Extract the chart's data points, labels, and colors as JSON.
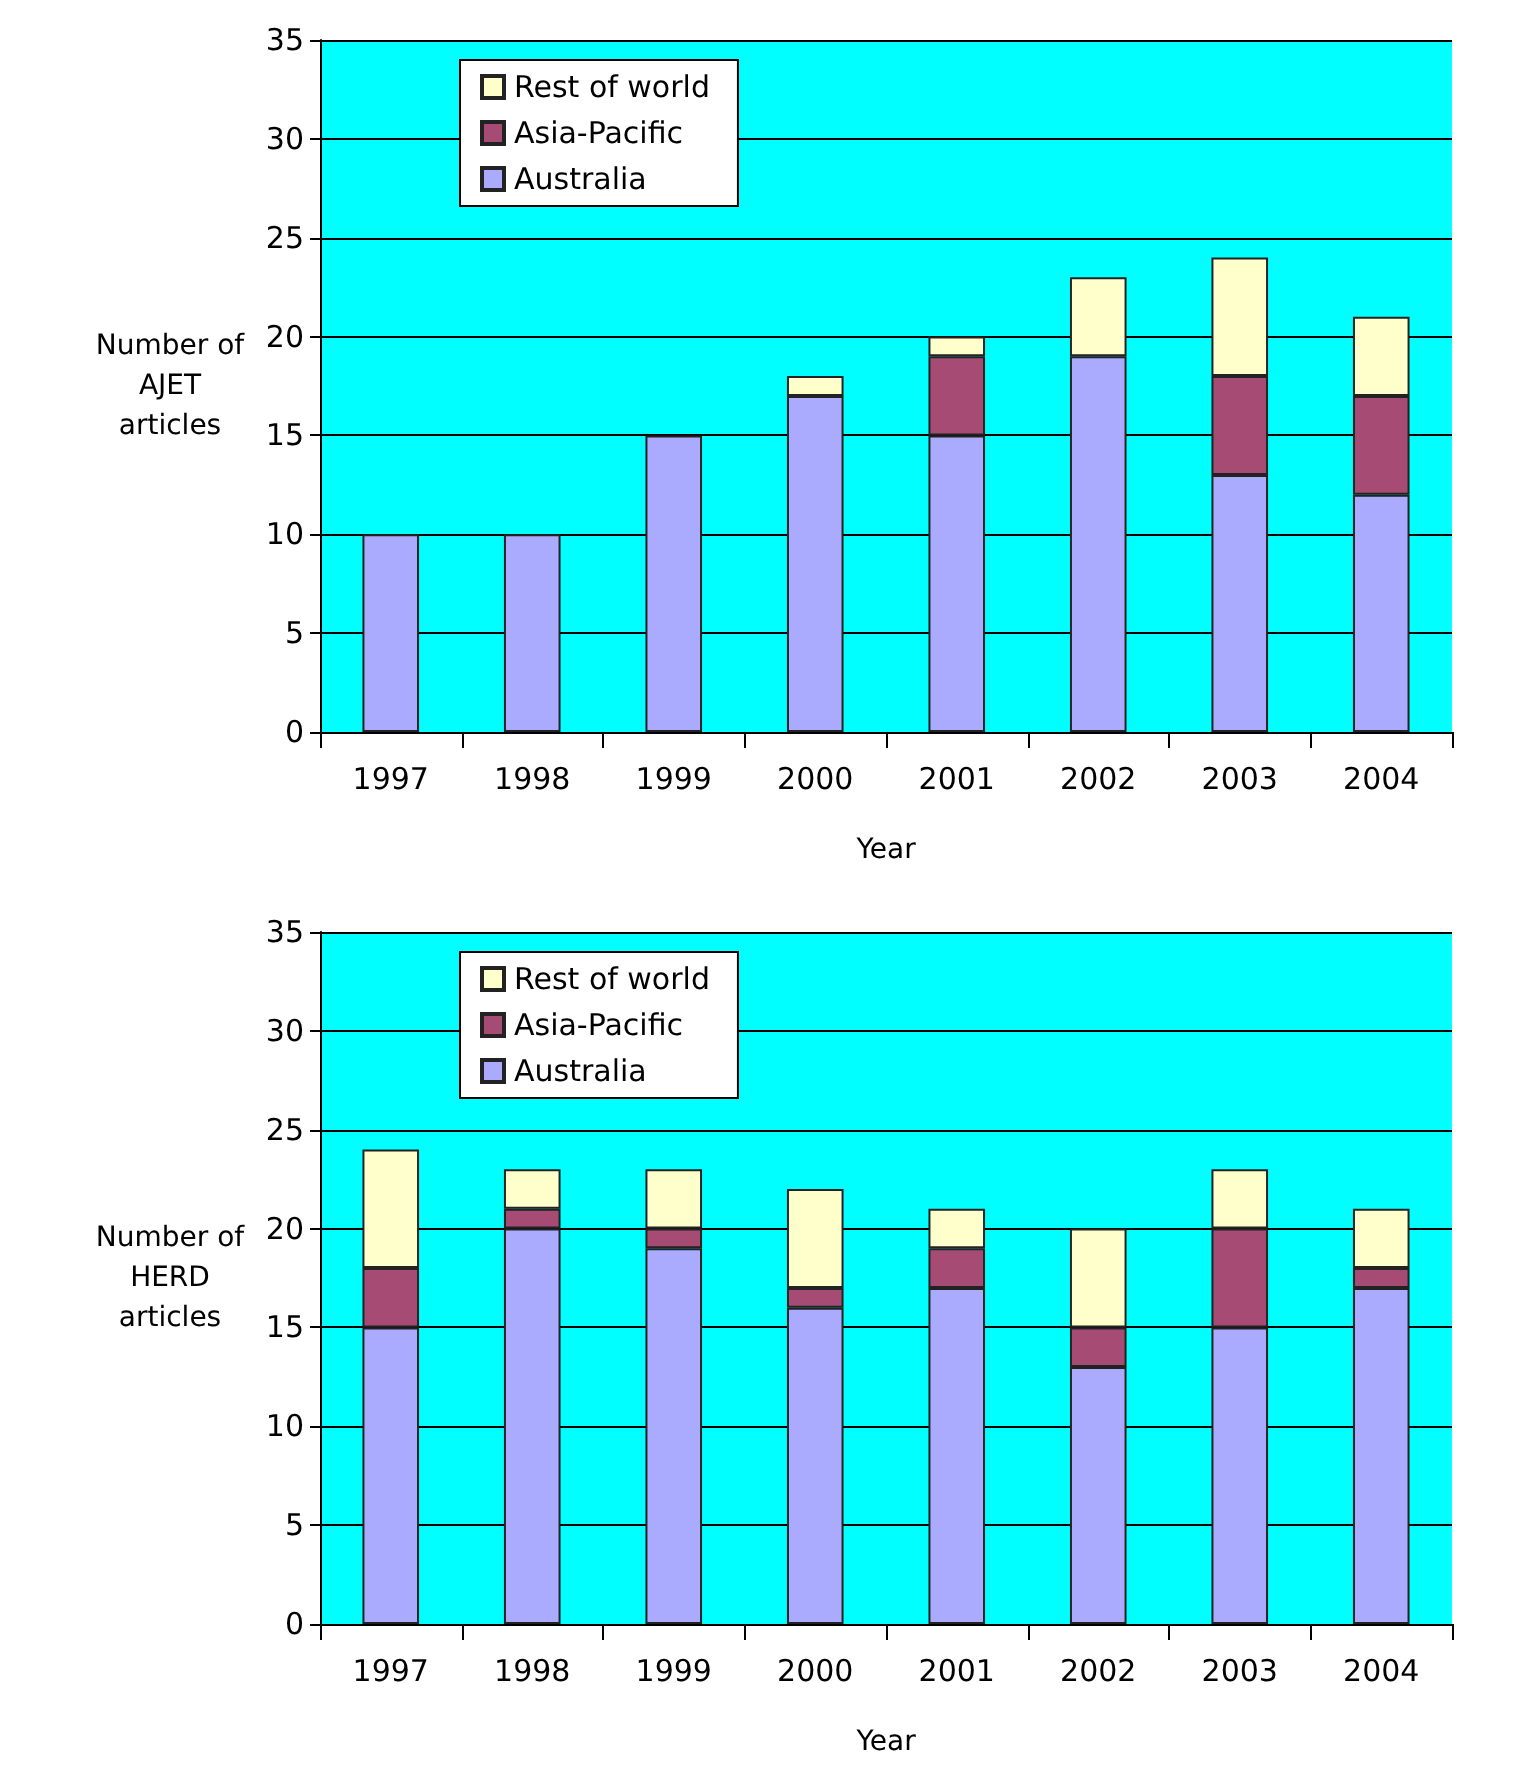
{
  "chart_data": [
    {
      "type": "bar",
      "stacked": true,
      "xlabel": "Year",
      "ylabel": "Number of AJET articles",
      "categories": [
        "1997",
        "1998",
        "1999",
        "2000",
        "2001",
        "2002",
        "2003",
        "2004"
      ],
      "series": [
        {
          "name": "Australia",
          "color": "#aaaaff",
          "values": [
            10,
            10,
            15,
            17,
            15,
            19,
            13,
            12
          ]
        },
        {
          "name": "Asia-Pacific",
          "color": "#a64b74",
          "values": [
            0,
            0,
            0,
            0,
            4,
            0,
            5,
            5
          ]
        },
        {
          "name": "Rest of world",
          "color": "#ffffcc",
          "values": [
            0,
            0,
            0,
            1,
            1,
            4,
            6,
            4
          ]
        }
      ],
      "ylim": [
        0,
        35
      ],
      "yticks": [
        0,
        5,
        10,
        15,
        20,
        25,
        30,
        35
      ],
      "grid": "y",
      "legend": "top left"
    },
    {
      "type": "bar",
      "stacked": true,
      "xlabel": "Year",
      "ylabel": "Number of HERD articles",
      "categories": [
        "1997",
        "1998",
        "1999",
        "2000",
        "2001",
        "2002",
        "2003",
        "2004"
      ],
      "series": [
        {
          "name": "Australia",
          "color": "#aaaaff",
          "values": [
            15,
            20,
            19,
            16,
            17,
            13,
            15,
            17
          ]
        },
        {
          "name": "Asia-Pacific",
          "color": "#a64b74",
          "values": [
            3,
            1,
            1,
            1,
            2,
            2,
            5,
            1
          ]
        },
        {
          "name": "Rest of world",
          "color": "#ffffcc",
          "values": [
            6,
            2,
            3,
            5,
            2,
            5,
            3,
            3
          ]
        }
      ],
      "ylim": [
        0,
        35
      ],
      "yticks": [
        0,
        5,
        10,
        15,
        20,
        25,
        30,
        35
      ],
      "grid": "y",
      "legend": "top left"
    }
  ]
}
